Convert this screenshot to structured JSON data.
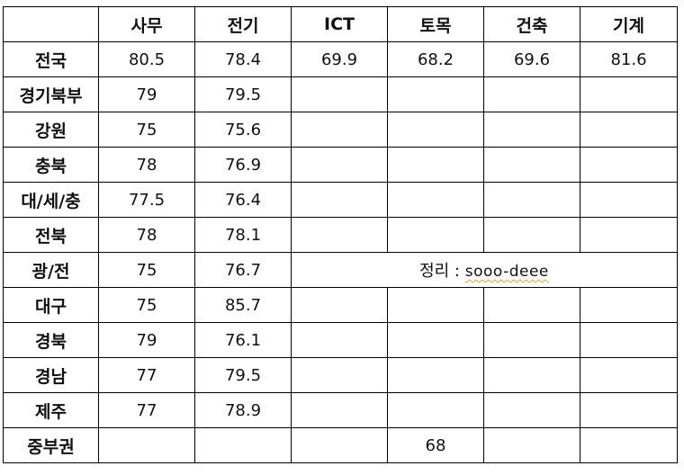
{
  "header": {
    "corner": "",
    "columns": [
      "사무",
      "전기",
      "ICT",
      "토목",
      "건축",
      "기계"
    ]
  },
  "rows": [
    {
      "region": "전국",
      "values": [
        "80.5",
        "78.4",
        "69.9",
        "68.2",
        "69.6",
        "81.6"
      ]
    },
    {
      "region": "경기북부",
      "values": [
        "79",
        "79.5",
        "",
        "",
        "",
        ""
      ]
    },
    {
      "region": "강원",
      "values": [
        "75",
        "75.6",
        "",
        "",
        "",
        ""
      ]
    },
    {
      "region": "충북",
      "values": [
        "78",
        "76.9",
        "",
        "",
        "",
        ""
      ]
    },
    {
      "region": "대/세/충",
      "values": [
        "77.5",
        "76.4",
        "",
        "",
        "",
        ""
      ]
    },
    {
      "region": "전북",
      "values": [
        "78",
        "78.1",
        "",
        "",
        "",
        ""
      ]
    },
    {
      "region": "광/전",
      "values": [
        "75",
        "76.7"
      ]
    },
    {
      "region": "대구",
      "values": [
        "75",
        "85.7",
        "",
        "",
        "",
        ""
      ]
    },
    {
      "region": "경북",
      "values": [
        "79",
        "76.1",
        "",
        "",
        "",
        ""
      ]
    },
    {
      "region": "경남",
      "values": [
        "77",
        "79.5",
        "",
        "",
        "",
        ""
      ]
    },
    {
      "region": "제주",
      "values": [
        "77",
        "78.9",
        "",
        "",
        "",
        ""
      ]
    },
    {
      "region": "중부권",
      "values": [
        "",
        "",
        "",
        "68",
        "",
        ""
      ]
    }
  ],
  "note": {
    "label": "정리 :",
    "name": "sooo-deee"
  }
}
